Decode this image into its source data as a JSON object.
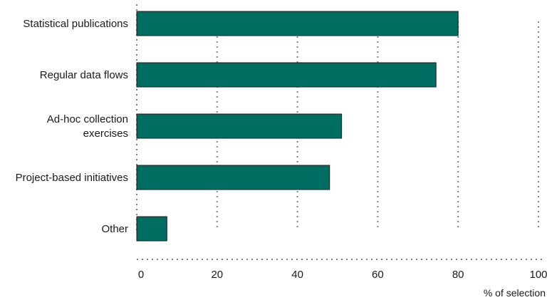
{
  "chart_data": {
    "type": "bar",
    "orientation": "horizontal",
    "categories": [
      "Statistical publications",
      "Regular data flows",
      "Ad-hoc collection exercises",
      "Project-based initiatives",
      "Other"
    ],
    "category_lines": [
      [
        "Statistical publications"
      ],
      [
        "Regular data flows"
      ],
      [
        "Ad-hoc collection",
        "exercises"
      ],
      [
        "Project-based initiatives"
      ],
      [
        "Other"
      ]
    ],
    "values": [
      80,
      74.5,
      51,
      48,
      7.5
    ],
    "xlabel": "% of selection",
    "ylabel": "",
    "title": "",
    "xlim": [
      0,
      100
    ],
    "xticks": [
      "0",
      "20",
      "40",
      "60",
      "80",
      "100"
    ],
    "grid": "vertical dotted",
    "legend": "none",
    "colors": {
      "bar_fill": "#006d63",
      "bar_stroke": "#1a1a1a",
      "grid": "#808080"
    }
  }
}
